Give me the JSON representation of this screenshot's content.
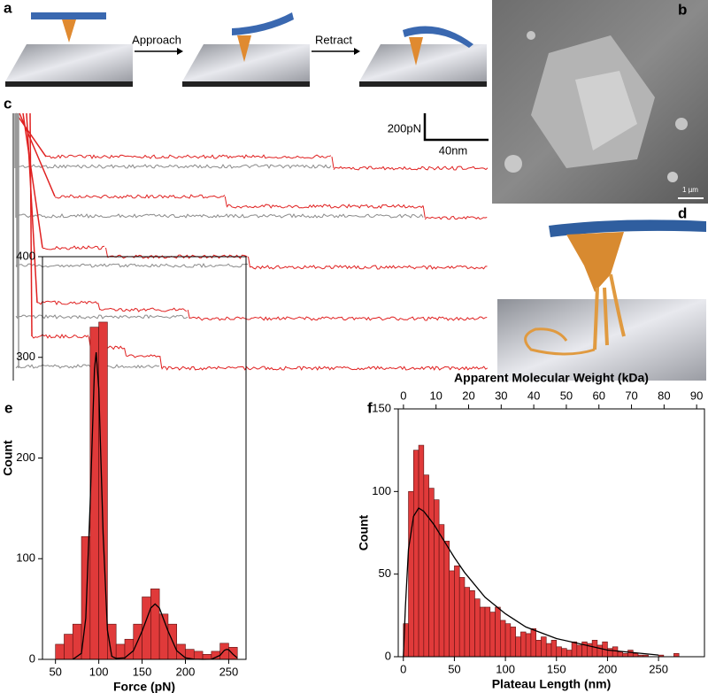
{
  "figure": {
    "panel_labels": [
      "a",
      "b",
      "c",
      "d",
      "e",
      "f"
    ],
    "panel_a": {
      "steps": [
        "Approach",
        "Retract"
      ]
    },
    "panel_b": {
      "scale_bar": "1 µm"
    },
    "panel_c": {
      "force_scale": "200pN",
      "distance_scale": "40nm",
      "traces": [
        {
          "plateaus": [
            {
              "end_nm": 204,
              "force_pN": 81
            }
          ]
        },
        {
          "plateaus": [
            {
              "end_nm": 135,
              "force_pN": 150
            },
            {
              "end_nm": 263,
              "force_pN": 81
            }
          ]
        },
        {
          "plateaus": [
            {
              "end_nm": 58,
              "force_pN": 138
            },
            {
              "end_nm": 150,
              "force_pN": 75
            }
          ]
        },
        {
          "plateaus": [
            {
              "end_nm": 53,
              "force_pN": 112
            },
            {
              "end_nm": 111,
              "force_pN": 62
            }
          ]
        },
        {
          "plateaus": [
            {
              "end_nm": 47,
              "force_pN": 225
            },
            {
              "end_nm": 70,
              "force_pN": 144
            },
            {
              "end_nm": 93,
              "force_pN": 87
            }
          ]
        }
      ]
    }
  },
  "chart_data": [
    {
      "type": "histogram",
      "xlabel": "Force (pN)",
      "ylabel": "Count",
      "color": "#e03a3a",
      "bins": [
        50,
        60,
        70,
        80,
        90,
        100,
        110,
        120,
        130,
        140,
        150,
        160,
        170,
        180,
        190,
        200,
        210,
        220,
        230,
        240,
        250,
        260
      ],
      "values": [
        15,
        25,
        35,
        122,
        330,
        335,
        35,
        15,
        20,
        35,
        62,
        70,
        45,
        35,
        15,
        10,
        8,
        5,
        8,
        16,
        12
      ],
      "fit": {
        "color": "#000000",
        "x": [
          70,
          80,
          85,
          90,
          95,
          97,
          100,
          105,
          110,
          115,
          120,
          130,
          140,
          150,
          160,
          165,
          170,
          180,
          190,
          200,
          210,
          220,
          230,
          240,
          245,
          248,
          250,
          255,
          260
        ],
        "values": [
          0,
          6,
          41,
          154,
          288,
          305,
          269,
          125,
          29,
          3,
          1,
          1.5,
          8.6,
          28,
          51,
          55,
          51,
          28,
          8.6,
          1.5,
          0.2,
          0,
          0.1,
          4,
          9,
          10,
          9.5,
          5,
          1.4
        ]
      },
      "xlim": [
        35,
        270
      ],
      "ylim": [
        0,
        400
      ],
      "xticks": [
        50,
        100,
        150,
        200,
        250
      ],
      "yticks": [
        0,
        100,
        200,
        300,
        400
      ]
    },
    {
      "type": "histogram",
      "xlabel": "Plateau Length (nm)",
      "ylabel": "Count",
      "x2label": "Apparent Molecular Weight (kDa)",
      "color": "#e03a3a",
      "bins": [
        0,
        5,
        10,
        15,
        20,
        25,
        30,
        35,
        40,
        45,
        50,
        55,
        60,
        65,
        70,
        75,
        80,
        85,
        90,
        95,
        100,
        105,
        110,
        115,
        120,
        125,
        130,
        135,
        140,
        145,
        150,
        155,
        160,
        165,
        170,
        175,
        180,
        185,
        190,
        195,
        200,
        205,
        210,
        215,
        220,
        225,
        230,
        235,
        240,
        245,
        250,
        255,
        260,
        265,
        270
      ],
      "values": [
        20,
        100,
        125,
        128,
        110,
        102,
        95,
        80,
        70,
        52,
        55,
        48,
        42,
        40,
        35,
        30,
        30,
        27,
        30,
        22,
        20,
        18,
        12,
        15,
        14,
        17,
        10,
        12,
        8,
        10,
        6,
        5,
        4,
        9,
        7,
        9,
        8,
        10,
        7,
        9,
        5,
        6,
        3,
        2,
        4,
        2,
        1,
        1,
        0,
        0,
        1,
        0,
        0,
        2
      ],
      "fit": {
        "color": "#000000",
        "x": [
          0,
          2,
          5,
          10,
          15,
          20,
          30,
          40,
          50,
          60,
          80,
          100,
          120,
          150,
          200,
          250
        ],
        "values": [
          0,
          30,
          65,
          85,
          90,
          88,
          80,
          70,
          60,
          51,
          36,
          26,
          18,
          11,
          4,
          1
        ]
      },
      "xlim": [
        -5,
        295
      ],
      "ylim": [
        0,
        150
      ],
      "x2lim": [
        -1.6,
        92.4
      ],
      "xticks": [
        0,
        50,
        100,
        150,
        200,
        250
      ],
      "yticks": [
        0,
        50,
        100,
        150
      ],
      "x2ticks": [
        0,
        10,
        20,
        30,
        40,
        50,
        60,
        70,
        80,
        90
      ]
    }
  ]
}
